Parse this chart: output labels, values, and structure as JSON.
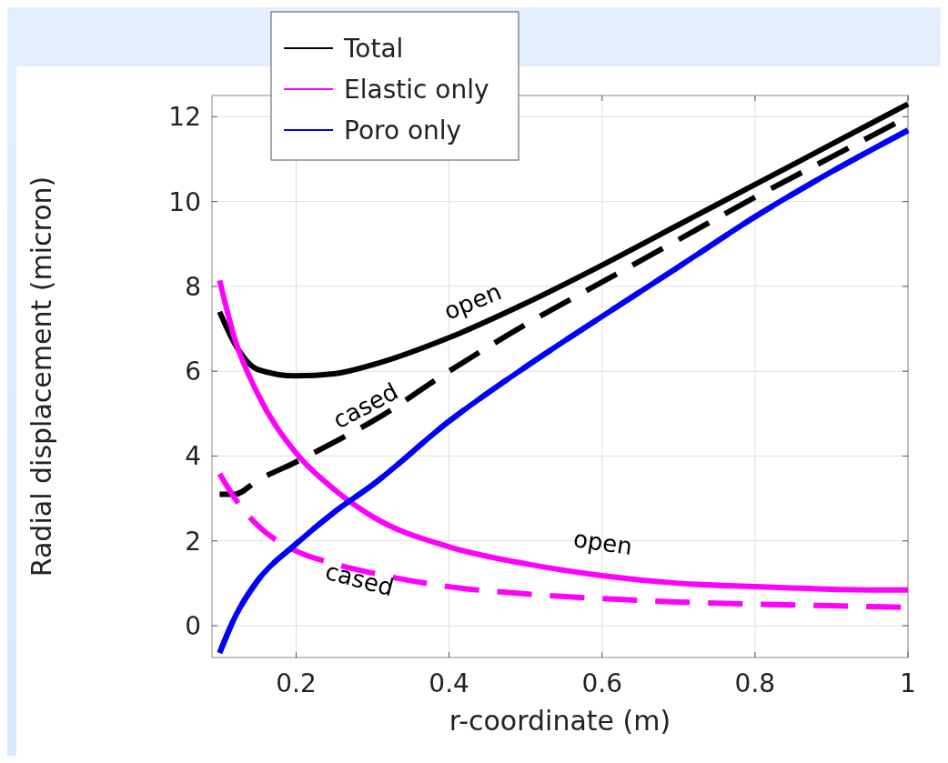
{
  "chart_data": {
    "type": "line",
    "xlabel": "r-coordinate (m)",
    "ylabel": "Radial displacement (micron)",
    "xlim": [
      0.09,
      1.0
    ],
    "xticks": [
      0.2,
      0.4,
      0.6,
      0.8,
      1
    ],
    "ylim": [
      -0.75,
      12.5
    ],
    "yticks": [
      0,
      2,
      4,
      6,
      8,
      10,
      12
    ],
    "grid": true,
    "legend": "top left",
    "x": [
      0.1,
      0.12,
      0.15,
      0.2,
      0.25,
      0.3,
      0.4,
      0.5,
      0.6,
      0.7,
      0.8,
      0.9,
      1.0
    ],
    "series": [
      {
        "name": "Total",
        "color": "#000000",
        "line_style": "solid",
        "values": [
          7.4,
          6.64,
          6.04,
          5.89,
          5.94,
          6.15,
          6.79,
          7.6,
          8.5,
          9.45,
          10.4,
          11.35,
          12.3
        ]
      },
      {
        "color": "#000000",
        "line_style": "dashed",
        "values": [
          3.1,
          3.1,
          3.43,
          3.86,
          4.33,
          4.82,
          6.0,
          7.1,
          8.1,
          9.1,
          10.1,
          11.05,
          12.0
        ]
      },
      {
        "name": "Elastic only",
        "color": "#ff00ff",
        "line_style": "solid",
        "values": [
          8.14,
          6.75,
          5.46,
          4.07,
          3.21,
          2.57,
          1.86,
          1.46,
          1.18,
          1.0,
          0.92,
          0.86,
          0.84
        ]
      },
      {
        "color": "#ff00ff",
        "line_style": "dashed",
        "values": [
          3.58,
          3.0,
          2.36,
          1.76,
          1.46,
          1.24,
          0.92,
          0.75,
          0.64,
          0.56,
          0.51,
          0.47,
          0.43
        ]
      },
      {
        "name": "Poro only",
        "color": "#0000ff",
        "line_style": "solid",
        "values": [
          -0.64,
          0.2,
          1.07,
          1.93,
          2.68,
          3.32,
          4.82,
          6.1,
          7.29,
          8.46,
          9.64,
          10.7,
          11.68
        ]
      },
      {
        "color": "#0000ff",
        "line_style": "dashed",
        "values": [
          -0.64,
          0.2,
          1.07,
          1.93,
          2.68,
          3.32,
          4.82,
          6.1,
          7.29,
          8.46,
          9.64,
          10.7,
          11.68
        ]
      }
    ],
    "annotations": [
      "open",
      "cased",
      "open",
      "cased"
    ]
  }
}
